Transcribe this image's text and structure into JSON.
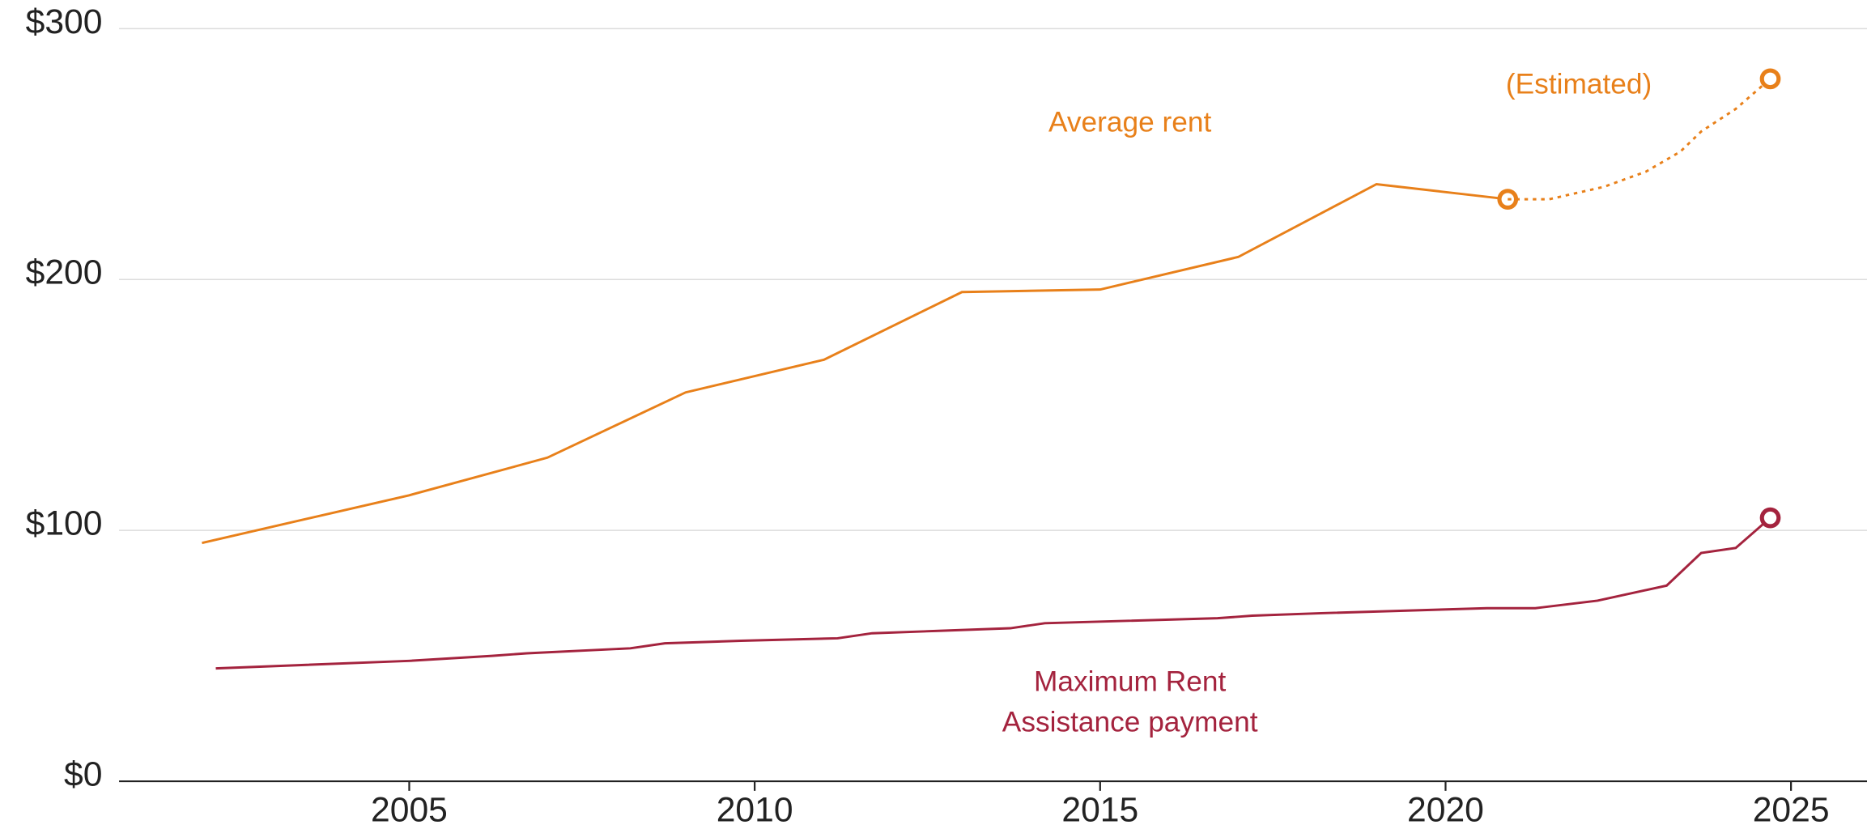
{
  "chart_data": {
    "type": "line",
    "series": [
      {
        "name": "Average rent",
        "color": "#e8801a",
        "dashed": false,
        "end_marker": true,
        "x": [
          2002,
          2005,
          2007,
          2009,
          2011,
          2013,
          2015,
          2017,
          2019,
          2020.9
        ],
        "values": [
          95,
          114,
          129,
          155,
          168,
          195,
          196,
          209,
          238,
          232
        ]
      },
      {
        "name": "(Estimated)",
        "color": "#e8801a",
        "dashed": true,
        "end_marker": true,
        "x": [
          2020.9,
          2021.5,
          2022.3,
          2022.9,
          2023.4,
          2023.7,
          2024.2,
          2024.7
        ],
        "values": [
          232,
          232,
          237,
          243,
          251,
          259,
          268,
          280
        ]
      },
      {
        "name": [
          "Maximum Rent",
          "Assistance payment"
        ],
        "color": "#a4233e",
        "dashed": false,
        "end_marker": true,
        "x": [
          2002.2,
          2005,
          2006.2,
          2006.7,
          2008.2,
          2008.7,
          2009.8,
          2011.2,
          2011.7,
          2012.7,
          2013.7,
          2014.2,
          2016.7,
          2017.2,
          2018.2,
          2020.6,
          2021.3,
          2022.2,
          2023.2,
          2023.7,
          2024.2,
          2024.7
        ],
        "values": [
          45,
          48,
          50,
          51,
          53,
          55,
          56,
          57,
          59,
          60,
          61,
          63,
          65,
          66,
          67,
          69,
          69,
          72,
          78,
          91,
          93,
          105
        ]
      }
    ],
    "xlim": [
      2000.8,
      2026.1
    ],
    "xticks": [
      2005,
      2010,
      2015,
      2020,
      2025
    ],
    "ylim": [
      0,
      300
    ],
    "yticks": [
      {
        "value": 0,
        "label": "$0"
      },
      {
        "value": 100,
        "label": "$100"
      },
      {
        "value": 200,
        "label": "$200"
      },
      {
        "value": 300,
        "label": "$300"
      }
    ],
    "grid": true
  }
}
